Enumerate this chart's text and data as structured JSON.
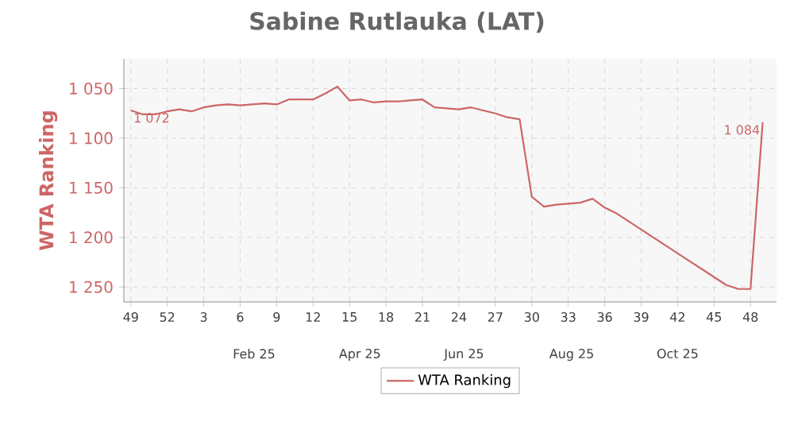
{
  "chart_data": {
    "type": "line",
    "title": "Sabine Rutlauka (LAT)",
    "ylabel": "WTA Ranking",
    "x": [
      "2024-12-02",
      "2024-12-09",
      "2024-12-16",
      "2024-12-23",
      "2024-12-30",
      "2025-01-06",
      "2025-01-13",
      "2025-01-20",
      "2025-01-27",
      "2025-02-03",
      "2025-02-10",
      "2025-02-17",
      "2025-02-24",
      "2025-03-03",
      "2025-03-10",
      "2025-03-17",
      "2025-03-24",
      "2025-03-31",
      "2025-04-07",
      "2025-04-14",
      "2025-04-21",
      "2025-04-28",
      "2025-05-05",
      "2025-05-12",
      "2025-05-19",
      "2025-05-26",
      "2025-06-02",
      "2025-06-09",
      "2025-06-16",
      "2025-06-23",
      "2025-06-30",
      "2025-07-07",
      "2025-07-14",
      "2025-07-21",
      "2025-07-28",
      "2025-08-04",
      "2025-08-11",
      "2025-08-18",
      "2025-08-25",
      "2025-09-01",
      "2025-09-08",
      "2025-09-15",
      "2025-09-22",
      "2025-09-29",
      "2025-10-06",
      "2025-10-13",
      "2025-10-20",
      "2025-10-27",
      "2025-11-03",
      "2025-11-10",
      "2025-11-17",
      "2025-11-24",
      "2025-12-01"
    ],
    "series": [
      {
        "name": "WTA Ranking",
        "color": "#cc6666",
        "values": [
          1072,
          1076,
          1076,
          1073,
          1071,
          1073,
          1069,
          1067,
          1066,
          1067,
          1066,
          1065,
          1066,
          1061,
          1061,
          1061,
          1055,
          1048,
          1062,
          1061,
          1064,
          1063,
          1063,
          1062,
          1061,
          1069,
          1070,
          1071,
          1069,
          1072,
          1075,
          1079,
          1081,
          1159,
          1169,
          1167,
          1166,
          1165,
          1161,
          1170,
          1176,
          1184,
          1192,
          1200,
          1208,
          1216,
          1224,
          1232,
          1240,
          1248,
          1252,
          1252,
          1084
        ],
        "value_labels": [
          "1 072",
          null,
          null,
          null,
          null,
          null,
          null,
          null,
          null,
          null,
          null,
          null,
          null,
          null,
          null,
          null,
          null,
          null,
          null,
          null,
          null,
          null,
          null,
          null,
          null,
          null,
          null,
          null,
          null,
          null,
          null,
          null,
          null,
          null,
          null,
          null,
          null,
          null,
          null,
          null,
          null,
          null,
          null,
          null,
          null,
          null,
          null,
          null,
          null,
          null,
          null,
          null,
          "1 084"
        ]
      }
    ],
    "xlim": [
      "2024-11-28",
      "2025-12-09"
    ],
    "xticks": [
      {
        "value": "2024-12-02",
        "label": "49"
      },
      {
        "value": "2024-12-23",
        "label": "52"
      },
      {
        "value": "2025-01-13",
        "label": "3"
      },
      {
        "value": "2025-02-03",
        "label": "6"
      },
      {
        "value": "2025-02-24",
        "label": "9"
      },
      {
        "value": "2025-03-17",
        "label": "12"
      },
      {
        "value": "2025-04-07",
        "label": "15"
      },
      {
        "value": "2025-04-28",
        "label": "18"
      },
      {
        "value": "2025-05-19",
        "label": "21"
      },
      {
        "value": "2025-06-09",
        "label": "24"
      },
      {
        "value": "2025-06-30",
        "label": "27"
      },
      {
        "value": "2025-07-21",
        "label": "30"
      },
      {
        "value": "2025-08-11",
        "label": "33"
      },
      {
        "value": "2025-09-01",
        "label": "36"
      },
      {
        "value": "2025-09-22",
        "label": "39"
      },
      {
        "value": "2025-10-13",
        "label": "42"
      },
      {
        "value": "2025-11-03",
        "label": "45"
      },
      {
        "value": "2025-11-24",
        "label": "48"
      }
    ],
    "x2lim": [
      "2024-11-28",
      "2025-12-09"
    ],
    "x2ticks": [
      {
        "value": "2025-02-11",
        "label": "Feb 25"
      },
      {
        "value": "2025-04-13",
        "label": "Apr 25"
      },
      {
        "value": "2025-06-12",
        "label": "Jun 25"
      },
      {
        "value": "2025-08-13",
        "label": "Aug 25"
      },
      {
        "value": "2025-10-13",
        "label": "Oct 25"
      }
    ],
    "ylim": [
      1265,
      1020
    ],
    "yticks": [
      {
        "value": 1050,
        "label": "1 050"
      },
      {
        "value": 1100,
        "label": "1 100"
      },
      {
        "value": 1150,
        "label": "1 150"
      },
      {
        "value": 1200,
        "label": "1 200"
      },
      {
        "value": 1250,
        "label": "1 250"
      }
    ],
    "grid": true,
    "legend": "bottom",
    "marker": "none",
    "line_style": "solid"
  }
}
